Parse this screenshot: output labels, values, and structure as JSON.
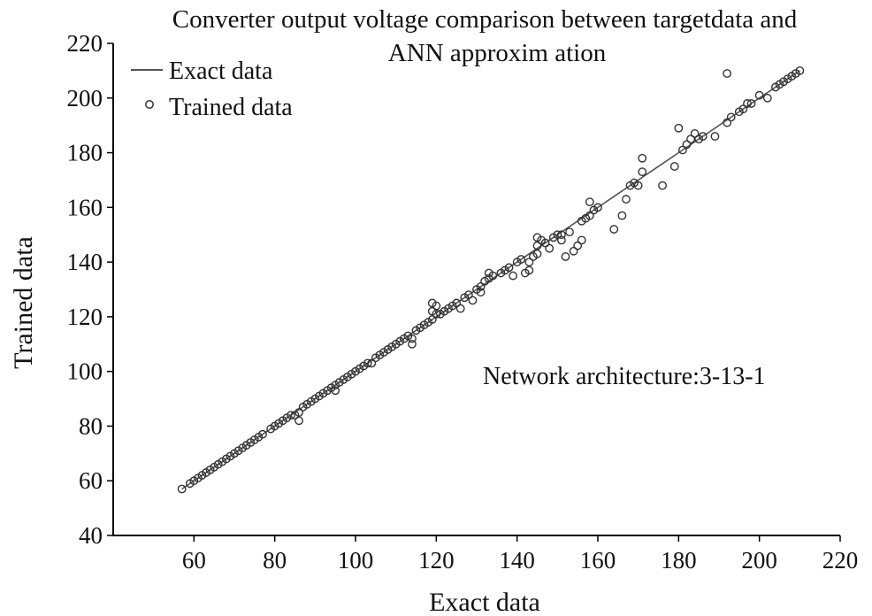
{
  "chart_data": {
    "type": "scatter",
    "title": "Converter output voltage comparison between targetdata and",
    "subtitle": "ANN approxim ation",
    "xlabel": "Exact data",
    "ylabel": "Trained data",
    "xlim": [
      40,
      220
    ],
    "ylim": [
      40,
      220
    ],
    "xticks": [
      "60",
      "80",
      "100",
      "120",
      "140",
      "160",
      "180",
      "200",
      "220"
    ],
    "yticks": [
      "40",
      "60",
      "80",
      "100",
      "120",
      "140",
      "160",
      "180",
      "200",
      "220"
    ],
    "grid": false,
    "legend_position": "top-left",
    "annotation": "Network architecture:3-13-1",
    "line_color": "#555555",
    "marker_color": "#333333",
    "series": [
      {
        "name": "Exact data",
        "kind": "line",
        "x": [
          57,
          210
        ],
        "y": [
          57,
          210
        ]
      },
      {
        "name": "Trained data",
        "kind": "marker",
        "points": [
          [
            57,
            57
          ],
          [
            59,
            59
          ],
          [
            60,
            60
          ],
          [
            61,
            61
          ],
          [
            62,
            62
          ],
          [
            63,
            63
          ],
          [
            64,
            64
          ],
          [
            65,
            65
          ],
          [
            66,
            66
          ],
          [
            67,
            67
          ],
          [
            68,
            68
          ],
          [
            69,
            69
          ],
          [
            70,
            70
          ],
          [
            71,
            71
          ],
          [
            72,
            72
          ],
          [
            73,
            73
          ],
          [
            74,
            74
          ],
          [
            75,
            75
          ],
          [
            76,
            76
          ],
          [
            77,
            77
          ],
          [
            79,
            79
          ],
          [
            80,
            80
          ],
          [
            81,
            81
          ],
          [
            82,
            82
          ],
          [
            83,
            83
          ],
          [
            84,
            84
          ],
          [
            85,
            84
          ],
          [
            86,
            82
          ],
          [
            86,
            85
          ],
          [
            87,
            87
          ],
          [
            88,
            88
          ],
          [
            89,
            89
          ],
          [
            90,
            90
          ],
          [
            91,
            91
          ],
          [
            92,
            92
          ],
          [
            93,
            93
          ],
          [
            94,
            94
          ],
          [
            95,
            95
          ],
          [
            95,
            93
          ],
          [
            96,
            96
          ],
          [
            97,
            97
          ],
          [
            98,
            98
          ],
          [
            99,
            99
          ],
          [
            100,
            100
          ],
          [
            101,
            101
          ],
          [
            102,
            102
          ],
          [
            103,
            103
          ],
          [
            104,
            103
          ],
          [
            105,
            105
          ],
          [
            106,
            106
          ],
          [
            107,
            107
          ],
          [
            108,
            108
          ],
          [
            109,
            109
          ],
          [
            110,
            110
          ],
          [
            111,
            111
          ],
          [
            112,
            112
          ],
          [
            113,
            113
          ],
          [
            114,
            110
          ],
          [
            114,
            112
          ],
          [
            115,
            115
          ],
          [
            116,
            116
          ],
          [
            117,
            117
          ],
          [
            118,
            118
          ],
          [
            119,
            119
          ],
          [
            119,
            122
          ],
          [
            119,
            125
          ],
          [
            120,
            124
          ],
          [
            120,
            121
          ],
          [
            121,
            121
          ],
          [
            122,
            122
          ],
          [
            123,
            123
          ],
          [
            124,
            124
          ],
          [
            125,
            125
          ],
          [
            126,
            123
          ],
          [
            127,
            127
          ],
          [
            128,
            128
          ],
          [
            129,
            126
          ],
          [
            130,
            130
          ],
          [
            131,
            131
          ],
          [
            131,
            129
          ],
          [
            132,
            133
          ],
          [
            133,
            136
          ],
          [
            133,
            134
          ],
          [
            134,
            135
          ],
          [
            136,
            136
          ],
          [
            137,
            137
          ],
          [
            138,
            138
          ],
          [
            139,
            135
          ],
          [
            140,
            140
          ],
          [
            141,
            141
          ],
          [
            142,
            136
          ],
          [
            143,
            140
          ],
          [
            143,
            137
          ],
          [
            144,
            142
          ],
          [
            145,
            143
          ],
          [
            145,
            146
          ],
          [
            145,
            149
          ],
          [
            146,
            148
          ],
          [
            147,
            147
          ],
          [
            148,
            145
          ],
          [
            149,
            149
          ],
          [
            150,
            150
          ],
          [
            151,
            150
          ],
          [
            151,
            148
          ],
          [
            152,
            142
          ],
          [
            153,
            151
          ],
          [
            154,
            144
          ],
          [
            155,
            146
          ],
          [
            156,
            148
          ],
          [
            156,
            155
          ],
          [
            157,
            156
          ],
          [
            158,
            157
          ],
          [
            158,
            162
          ],
          [
            159,
            159
          ],
          [
            160,
            160
          ],
          [
            164,
            152
          ],
          [
            166,
            157
          ],
          [
            167,
            163
          ],
          [
            168,
            168
          ],
          [
            169,
            169
          ],
          [
            170,
            168
          ],
          [
            171,
            178
          ],
          [
            171,
            173
          ],
          [
            176,
            168
          ],
          [
            179,
            175
          ],
          [
            180,
            189
          ],
          [
            181,
            181
          ],
          [
            182,
            183
          ],
          [
            183,
            185
          ],
          [
            184,
            187
          ],
          [
            185,
            185
          ],
          [
            186,
            186
          ],
          [
            189,
            186
          ],
          [
            192,
            209
          ],
          [
            192,
            191
          ],
          [
            193,
            193
          ],
          [
            195,
            195
          ],
          [
            196,
            196
          ],
          [
            197,
            198
          ],
          [
            198,
            198
          ],
          [
            200,
            201
          ],
          [
            202,
            200
          ],
          [
            204,
            204
          ],
          [
            205,
            205
          ],
          [
            206,
            206
          ],
          [
            207,
            207
          ],
          [
            208,
            208
          ],
          [
            209,
            209
          ],
          [
            210,
            210
          ]
        ]
      }
    ]
  }
}
